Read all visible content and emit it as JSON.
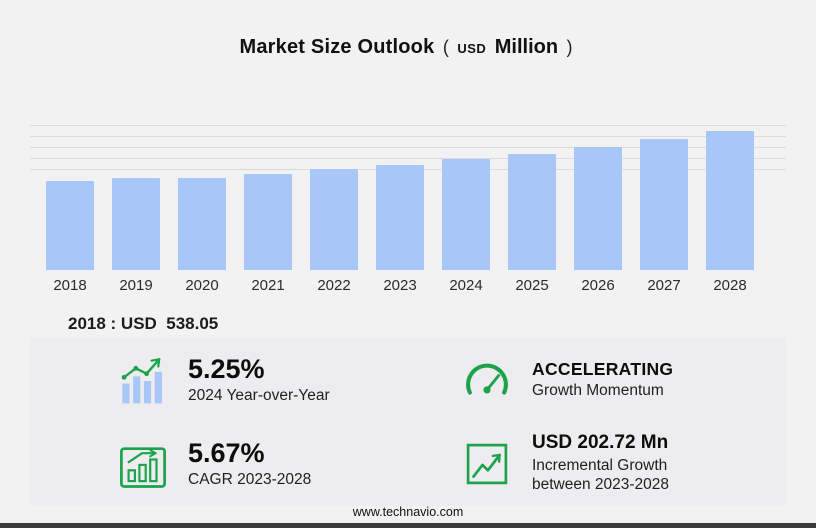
{
  "title": {
    "main": "Market Size Outlook",
    "paren_open": "(",
    "currency": "USD",
    "unit": "Million",
    "paren_close": ")"
  },
  "chart_data": {
    "type": "bar",
    "title": "Market Size Outlook (USD Million)",
    "categories": [
      "2018",
      "2019",
      "2020",
      "2021",
      "2022",
      "2023",
      "2024",
      "2025",
      "2026",
      "2027",
      "2028"
    ],
    "values": [
      538.05,
      560,
      556,
      582,
      610,
      638.5,
      672,
      706,
      745,
      793,
      841
    ],
    "xlabel": "",
    "ylabel": "",
    "ylim": [
      0,
      880
    ],
    "grid": "horizontal-top-only",
    "legend": "none",
    "bar_color": "#a9c6f8"
  },
  "annotation": {
    "label": "2018 : USD  538.05"
  },
  "stats": [
    {
      "icon": "yoy-bars-trend-icon",
      "value": "5.25%",
      "caption": "2024 Year-over-Year"
    },
    {
      "icon": "speedometer-icon",
      "value": "ACCELERATING",
      "caption": "Growth Momentum"
    },
    {
      "icon": "cagr-chart-icon",
      "value": "5.67%",
      "caption": "CAGR 2023-2028"
    },
    {
      "icon": "growth-arrow-icon",
      "value": "USD 202.72 Mn",
      "caption": "Incremental Growth between 2023-2028"
    }
  ],
  "footer": {
    "url": "www.technavio.com"
  },
  "colors": {
    "accent_green": "#1ca24b",
    "bar_blue": "#a9c6f8",
    "background": "#f2f2f3",
    "panel": "#ededef"
  }
}
